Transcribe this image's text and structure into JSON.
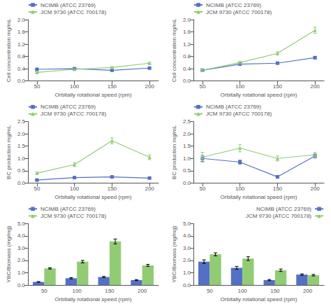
{
  "chart_data": [
    {
      "type": "line",
      "x_label": "Orbitally rotational speed (rpm)",
      "y_label": "Cell concentration mg/mL",
      "x": [
        50,
        100,
        150,
        200
      ],
      "xlim": [
        38,
        212
      ],
      "xticks": [
        50,
        100,
        150,
        200
      ],
      "ylim": [
        0.0,
        2.0
      ],
      "yticks": [
        {
          "value": 0.0,
          "label": "0.0"
        },
        0.4,
        0.8,
        1.2,
        1.6,
        {
          "value": 2.0,
          "label": "2.0"
        }
      ],
      "grid": false,
      "legend": "upper left",
      "series": [
        {
          "name": "NCIMB (ATCC 23769)",
          "marker": "square",
          "values": [
            0.38,
            0.4,
            0.35,
            0.42
          ],
          "errors": [
            0.02,
            0.02,
            0.02,
            0.02
          ]
        },
        {
          "name": "JCM 9730 (ATCC 700178)",
          "marker": "triangle",
          "values": [
            0.28,
            0.38,
            0.44,
            0.58
          ],
          "errors": [
            0.02,
            0.02,
            0.03,
            0.03
          ]
        }
      ]
    },
    {
      "type": "line",
      "x_label": "Orbitally rotational speed (rpm)",
      "y_label": "Cell concentration mg/mL",
      "x": [
        50,
        100,
        150,
        200
      ],
      "xlim": [
        38,
        212
      ],
      "xticks": [
        50,
        100,
        150,
        200
      ],
      "ylim": [
        0.0,
        2.0
      ],
      "yticks": [
        {
          "value": 0.0,
          "label": "0.0"
        },
        0.4,
        0.8,
        1.2,
        1.6,
        {
          "value": 2.0,
          "label": "2.0"
        }
      ],
      "grid": false,
      "legend": "upper left",
      "series": [
        {
          "name": "NCIMB (ATCC 23769)",
          "marker": "square",
          "values": [
            0.35,
            0.55,
            0.58,
            0.76
          ],
          "errors": [
            0.02,
            0.03,
            0.03,
            0.04
          ]
        },
        {
          "name": "JCM 9730 (ATCC 700178)",
          "marker": "triangle",
          "values": [
            0.35,
            0.6,
            0.9,
            1.65
          ],
          "errors": [
            0.02,
            0.04,
            0.05,
            0.1
          ]
        }
      ]
    },
    {
      "type": "line",
      "x_label": "Orbitally rotational speed (rpm)",
      "y_label": "BC production mg/mL",
      "x": [
        50,
        100,
        150,
        200
      ],
      "xlim": [
        38,
        212
      ],
      "xticks": [
        50,
        100,
        150,
        200
      ],
      "ylim": [
        0.0,
        2.5
      ],
      "yticks": [
        {
          "value": 0.0,
          "label": "0.0"
        },
        0.5,
        {
          "value": 1.0,
          "label": "1.0"
        },
        1.5,
        {
          "value": 2.0,
          "label": "2.0"
        },
        2.5
      ],
      "grid": false,
      "legend": "upper left",
      "series": [
        {
          "name": "NCIMB (ATCC 23769)",
          "marker": "square",
          "values": [
            0.12,
            0.22,
            0.25,
            0.2
          ],
          "errors": [
            0.02,
            0.02,
            0.02,
            0.02
          ]
        },
        {
          "name": "JCM 9730 (ATCC 700178)",
          "marker": "triangle",
          "values": [
            0.4,
            0.75,
            1.72,
            1.05
          ],
          "errors": [
            0.05,
            0.08,
            0.12,
            0.1
          ]
        }
      ]
    },
    {
      "type": "line",
      "x_label": "Orbitally rotational speed (rpm)",
      "y_label": "BC production mg/mL",
      "x": [
        50,
        100,
        150,
        200
      ],
      "xlim": [
        38,
        212
      ],
      "xticks": [
        50,
        100,
        150,
        200
      ],
      "ylim": [
        0.0,
        2.5
      ],
      "yticks": [
        {
          "value": 0.0,
          "label": "0.0"
        },
        0.5,
        {
          "value": 1.0,
          "label": "1.0"
        },
        1.5,
        {
          "value": 2.0,
          "label": "2.0"
        },
        2.5
      ],
      "grid": false,
      "legend": "upper left",
      "series": [
        {
          "name": "NCIMB (ATCC 23769)",
          "marker": "square",
          "values": [
            1.0,
            0.85,
            0.25,
            1.1
          ],
          "errors": [
            0.12,
            0.08,
            0.05,
            0.08
          ]
        },
        {
          "name": "JCM 9730 (ATCC 700178)",
          "marker": "triangle",
          "values": [
            1.05,
            1.42,
            1.0,
            1.15
          ],
          "errors": [
            0.2,
            0.15,
            0.1,
            0.1
          ]
        }
      ]
    },
    {
      "type": "bar",
      "x_label": "Orbitally rotational speed (rpm)",
      "y_label": "YBC/Biomass (mg/mg)",
      "categories": [
        "50",
        "100",
        "150",
        "200"
      ],
      "ylim": [
        0.0,
        5.0
      ],
      "yticks": [
        {
          "value": 0.0,
          "label": "0.0"
        },
        {
          "value": 1.0,
          "label": "1.0"
        },
        {
          "value": 2.0,
          "label": "2.0"
        },
        {
          "value": 3.0,
          "label": "3.0"
        },
        {
          "value": 4.0,
          "label": "4.0"
        },
        {
          "value": 5.0,
          "label": "5.0"
        }
      ],
      "grid": false,
      "legend": "upper left",
      "series": [
        {
          "name": "NCIMB (ATCC 23769)",
          "values": [
            0.25,
            0.55,
            0.65,
            0.4
          ],
          "errors": [
            0.03,
            0.05,
            0.05,
            0.04
          ]
        },
        {
          "name": "JCM 9730 (ATCC 700178)",
          "values": [
            1.35,
            1.9,
            3.55,
            1.6
          ],
          "errors": [
            0.05,
            0.1,
            0.2,
            0.08
          ]
        }
      ]
    },
    {
      "type": "bar",
      "x_label": "Orbitally rotational speed (rpm)",
      "y_label": "YBC/Biomass (mg/mg)",
      "categories": [
        "50",
        "100",
        "150",
        "200"
      ],
      "ylim": [
        0.0,
        5.0
      ],
      "yticks": [
        {
          "value": 0.0,
          "label": "0.0"
        },
        {
          "value": 1.0,
          "label": "1.0"
        },
        {
          "value": 2.0,
          "label": "2.0"
        },
        {
          "value": 3.0,
          "label": "3.0"
        },
        {
          "value": 4.0,
          "label": "4.0"
        },
        {
          "value": 5.0,
          "label": "5.0"
        }
      ],
      "grid": false,
      "legend": "upper right",
      "series": [
        {
          "name": "NCIMB (ATCC 23769)",
          "values": [
            1.9,
            1.4,
            0.4,
            0.85
          ],
          "errors": [
            0.15,
            0.12,
            0.05,
            0.06
          ]
        },
        {
          "name": "JCM 9730 (ATCC 700178)",
          "values": [
            2.5,
            2.15,
            1.2,
            0.8
          ],
          "errors": [
            0.12,
            0.15,
            0.1,
            0.06
          ]
        }
      ]
    }
  ]
}
